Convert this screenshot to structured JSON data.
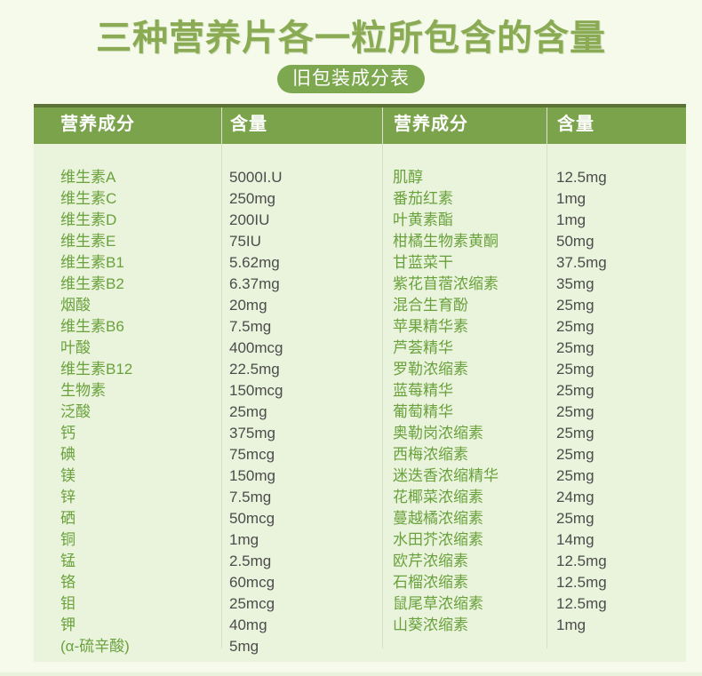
{
  "page": {
    "title": "三种营养片各一粒所包含的含量",
    "badge": "旧包装成分表"
  },
  "colors": {
    "page_background": "#f5faeb",
    "title_green": "#8aab54",
    "badge_green": "#7ea84f",
    "header_green": "#7ba34c",
    "header_top_edge": "#5c7134",
    "table_body_background": "#eaf3dc",
    "ingredient_name_green": "#69a23c",
    "amount_gray": "#4c4c4c"
  },
  "table": {
    "headers": [
      "营养成分",
      "含量",
      "营养成分",
      "含量"
    ],
    "left_rows": [
      {
        "name": "维生素A",
        "amount": "5000I.U"
      },
      {
        "name": "维生素C",
        "amount": "250mg"
      },
      {
        "name": "维生素D",
        "amount": "200IU"
      },
      {
        "name": "维生素E",
        "amount": "75IU"
      },
      {
        "name": "维生素B1",
        "amount": "5.62mg"
      },
      {
        "name": "维生素B2",
        "amount": "6.37mg"
      },
      {
        "name": "烟酸",
        "amount": "20mg"
      },
      {
        "name": "维生素B6",
        "amount": "7.5mg"
      },
      {
        "name": "叶酸",
        "amount": "400mcg"
      },
      {
        "name": "维生素B12",
        "amount": "22.5mg"
      },
      {
        "name": "生物素",
        "amount": "150mcg"
      },
      {
        "name": "泛酸",
        "amount": "25mg"
      },
      {
        "name": "钙",
        "amount": "375mg"
      },
      {
        "name": "碘",
        "amount": "75mcg"
      },
      {
        "name": "镁",
        "amount": "150mg"
      },
      {
        "name": "锌",
        "amount": "7.5mg"
      },
      {
        "name": "硒",
        "amount": "50mcg"
      },
      {
        "name": "铜",
        "amount": "1mg"
      },
      {
        "name": "锰",
        "amount": "2.5mg"
      },
      {
        "name": "铬",
        "amount": "60mcg"
      },
      {
        "name": "钼",
        "amount": "25mcg"
      },
      {
        "name": "钾",
        "amount": "40mg"
      },
      {
        "name": "(α-硫辛酸)",
        "amount": "5mg"
      }
    ],
    "right_rows": [
      {
        "name": "肌醇",
        "amount": "12.5mg"
      },
      {
        "name": "番茄红素",
        "amount": "1mg"
      },
      {
        "name": "叶黄素酯",
        "amount": "1mg"
      },
      {
        "name": "柑橘生物素黄酮",
        "amount": "50mg"
      },
      {
        "name": "甘蓝菜干",
        "amount": "37.5mg"
      },
      {
        "name": "紫花苜蓿浓缩素",
        "amount": "35mg"
      },
      {
        "name": "混合生育酚",
        "amount": "25mg"
      },
      {
        "name": "苹果精华素",
        "amount": "25mg"
      },
      {
        "name": "芦荟精华",
        "amount": "25mg"
      },
      {
        "name": "罗勒浓缩素",
        "amount": "25mg"
      },
      {
        "name": "蓝莓精华",
        "amount": "25mg"
      },
      {
        "name": "葡萄精华",
        "amount": "25mg"
      },
      {
        "name": "奥勒岗浓缩素",
        "amount": "25mg"
      },
      {
        "name": "西梅浓缩素",
        "amount": "25mg"
      },
      {
        "name": "迷迭香浓缩精华",
        "amount": "25mg"
      },
      {
        "name": "花椰菜浓缩素",
        "amount": "24mg"
      },
      {
        "name": "蔓越橘浓缩素",
        "amount": "25mg"
      },
      {
        "name": "水田芥浓缩素",
        "amount": "14mg"
      },
      {
        "name": "欧芹浓缩素",
        "amount": "12.5mg"
      },
      {
        "name": "石榴浓缩素",
        "amount": "12.5mg"
      },
      {
        "name": "鼠尾草浓缩素",
        "amount": "12.5mg"
      },
      {
        "name": "山葵浓缩素",
        "amount": "1mg"
      }
    ]
  }
}
